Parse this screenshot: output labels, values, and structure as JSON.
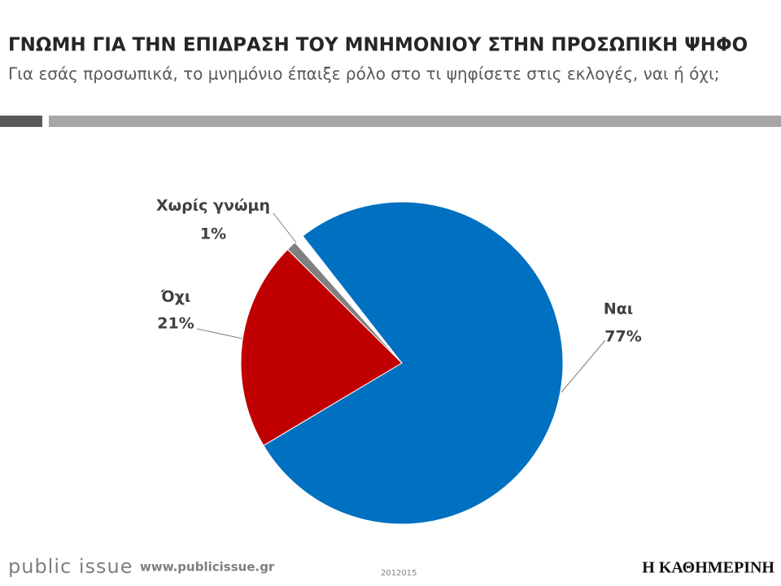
{
  "chart_data": {
    "type": "pie",
    "title": "ΓΝΩΜΗ ΓΙΑ ΤΗΝ ΕΠΙΔΡΑΣΗ ΤΟΥ ΜΝΗΜΟΝΙΟΥ ΣΤΗΝ ΠΡΟΣΩΠΙΚΗ ΨΗΦΟ",
    "subtitle": "Για εσάς προσωπικά, το μνημόνιο έπαιξε ρόλο στο τι ψηφίσετε στις εκλογές, ναι ή όχι;",
    "categories": [
      "Ναι",
      "Όχι",
      "Χωρίς γνώμη"
    ],
    "values": [
      77,
      21,
      1
    ],
    "value_labels": [
      "77%",
      "21%",
      "1%"
    ],
    "colors": [
      "#0070C0",
      "#C00000",
      "#808080"
    ]
  },
  "footer": {
    "brand": "public issue",
    "url": "www.publicissue.gr",
    "code": "2012015",
    "logo": "Η ΚΑΘΗΜΕΡΙΝΗ"
  }
}
